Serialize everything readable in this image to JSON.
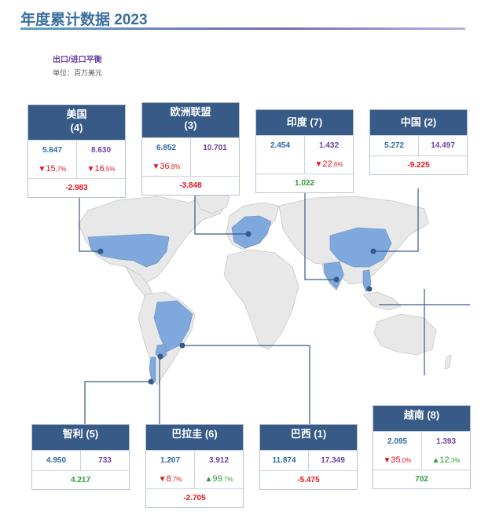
{
  "header": {
    "title": "年度累计数据 2023",
    "subtitle": "出口/进口平衡",
    "unit": "单位：百万美元"
  },
  "cards": [
    {
      "id": "usa",
      "name": "美国",
      "count": "(4)",
      "export": "5.647",
      "import": "8.630",
      "export_change": {
        "dir": "▼",
        "main": "15",
        "frac": ",7%",
        "color": "neg"
      },
      "import_change": {
        "dir": "▼",
        "main": "16",
        "frac": ",5%",
        "color": "neg"
      },
      "balance": "-2.983",
      "balance_color": "neg"
    },
    {
      "id": "eu",
      "name": "欧洲联盟",
      "count": "(3)",
      "export": "6.852",
      "import": "10.701",
      "export_change": {
        "dir": "▼",
        "main": "36",
        "frac": ",8%",
        "color": "neg"
      },
      "import_change": null,
      "balance": "-3.848",
      "balance_color": "neg"
    },
    {
      "id": "india",
      "name": "印度 (7)",
      "count": "",
      "export": "2.454",
      "import": "1.432",
      "export_change": null,
      "import_change": {
        "dir": "▼",
        "main": "22",
        "frac": ",6%",
        "color": "neg"
      },
      "balance": "1.022",
      "balance_color": "pos"
    },
    {
      "id": "china",
      "name": "中国 (2)",
      "count": "",
      "export": "5.272",
      "import": "14.497",
      "export_change": null,
      "import_change": null,
      "balance": "-9.225",
      "balance_color": "neg"
    },
    {
      "id": "chile",
      "name": "智利 (5)",
      "count": "",
      "export": "4.950",
      "import": "733",
      "export_change": null,
      "import_change": null,
      "balance": "4.217",
      "balance_color": "pos"
    },
    {
      "id": "paraguay",
      "name": "巴拉圭 (6)",
      "count": "",
      "export": "1.207",
      "import": "3.912",
      "export_change": {
        "dir": "▼",
        "main": "8",
        "frac": ",7%",
        "color": "neg"
      },
      "import_change": {
        "dir": "▲",
        "main": "99",
        "frac": ",7%",
        "color": "pos"
      },
      "balance": "-2.705",
      "balance_color": "neg"
    },
    {
      "id": "brazil",
      "name": "巴西 (1)",
      "count": "",
      "export": "11.874",
      "import": "17.349",
      "export_change": null,
      "import_change": null,
      "balance": "-5.475",
      "balance_color": "neg"
    },
    {
      "id": "vietnam",
      "name": "越南 (8)",
      "count": "",
      "export": "2.095",
      "import": "1.393",
      "export_change": {
        "dir": "▼",
        "main": "35",
        "frac": ",0%",
        "color": "neg"
      },
      "import_change": {
        "dir": "▲",
        "main": "12",
        "frac": ",3%",
        "color": "pos"
      },
      "balance": "702",
      "balance_color": "pos"
    }
  ],
  "colors": {
    "header": "#375a87",
    "highlight": "#7fa8dc",
    "land": "#e9e9e9",
    "connector": "#375a87"
  }
}
